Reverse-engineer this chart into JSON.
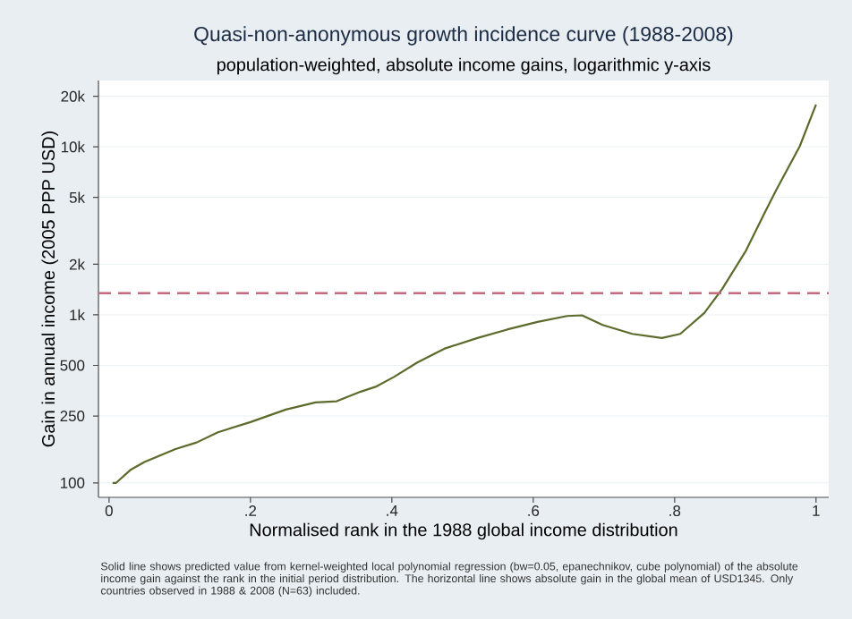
{
  "chart_data": {
    "type": "line",
    "title": "Quasi-non-anonymous growth incidence curve (1988-2008)",
    "subtitle": "population-weighted, absolute income gains, logarithmic y-axis",
    "xlabel": "Normalised rank in the 1988 global income distribution",
    "ylabel": "Gain in annual income (2005 PPP USD)",
    "annotations": [
      "Solid line shows predicted value from kernel-weighted local polynomial regression (bw=0.05, epanechnikov, cube polynomial) of the absolute income gain against the rank in the initial period distribution. The horizontal line shows absolute gain in the global mean of USD1345. Only countries observed in 1988 & 2008 (N=63) included."
    ],
    "log": "y",
    "grid": "y",
    "marker": "none",
    "line_style": "solid",
    "xlim": [
      -0.015,
      1.018
    ],
    "ylim": [
      82,
      24800
    ],
    "xticks": [
      0,
      {
        "value": 0.2,
        "label": ".2"
      },
      {
        "value": 0.4,
        "label": ".4"
      },
      {
        "value": 0.6,
        "label": ".6"
      },
      {
        "value": 0.8,
        "label": ".8"
      },
      1
    ],
    "yticks": [
      100,
      250,
      500,
      {
        "value": 1000,
        "label": "1k"
      },
      {
        "value": 2000,
        "label": "2k"
      },
      {
        "value": 5000,
        "label": "5k"
      },
      {
        "value": 10000,
        "label": "10k"
      },
      {
        "value": 20000,
        "label": "20k"
      }
    ],
    "ref_lines": [
      {
        "axis": "y",
        "value": 1345,
        "color": "#c46a7c",
        "line_style": "dashed"
      }
    ],
    "x": [
      0.005,
      0.01,
      0.031,
      0.05,
      0.094,
      0.124,
      0.154,
      0.2,
      0.25,
      0.292,
      0.322,
      0.356,
      0.377,
      0.403,
      0.436,
      0.474,
      0.521,
      0.563,
      0.606,
      0.648,
      0.669,
      0.698,
      0.74,
      0.782,
      0.808,
      0.842,
      0.867,
      0.901,
      0.926,
      0.943,
      0.977,
      1.0
    ],
    "series": [
      {
        "color": "#5b6b2b",
        "values": [
          100,
          100,
          120,
          133,
          159,
          174,
          200,
          230,
          273,
          301,
          306,
          349,
          373,
          427,
          520,
          628,
          728,
          817,
          907,
          984,
          993,
          871,
          770,
          728,
          770,
          1025,
          1420,
          2414,
          3940,
          5460,
          10070,
          17860
        ]
      }
    ]
  }
}
